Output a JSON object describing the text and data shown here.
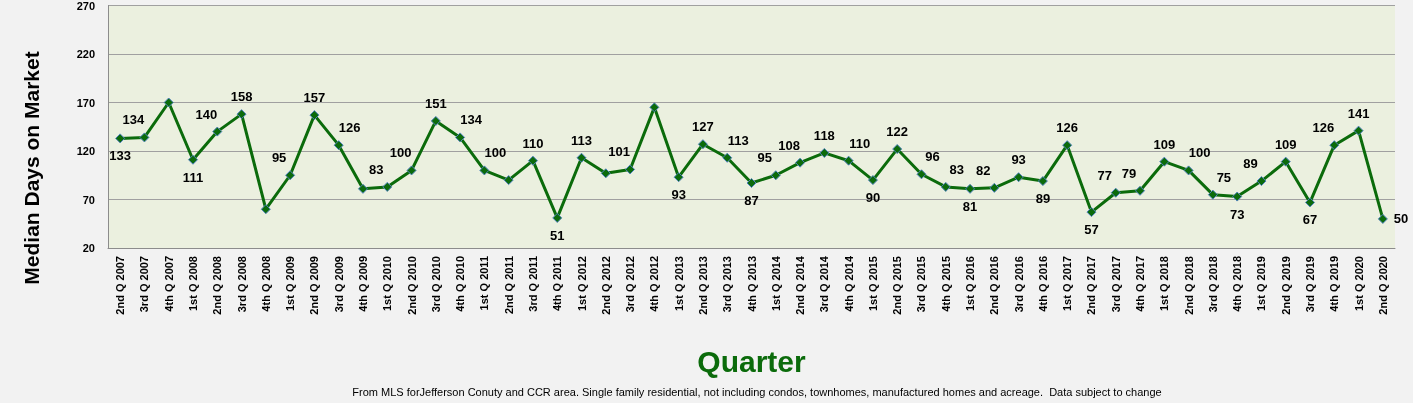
{
  "chart_data": {
    "type": "line",
    "categories": [
      "2nd Q 2007",
      "3rd Q 2007",
      "4th Q 2007",
      "1st Q 2008",
      "2nd Q 2008",
      "3rd Q 2008",
      "4th Q 2008",
      "1st Q 2009",
      "2nd Q 2009",
      "3rd Q 2009",
      "4th Q 2009",
      "1st Q 2010",
      "2nd Q 2010",
      "3rd Q 2010",
      "4th Q 2010",
      "1st Q 2011",
      "2nd Q 2011",
      "3rd Q 2011",
      "4th Q 2011",
      "1st Q 2012",
      "2nd Q 2012",
      "3rd Q 2012",
      "4th Q 2012",
      "1st Q 2013",
      "2nd Q 2013",
      "3rd Q 2013",
      "4th Q 2013",
      "1st Q 2014",
      "2nd Q 2014",
      "3rd Q 2014",
      "4th Q 2014",
      "1st Q 2015",
      "2nd Q 2015",
      "3rd Q 2015",
      "4th Q 2015",
      "1st Q 2016",
      "2nd Q 2016",
      "3rd Q 2016",
      "4th Q 2016",
      "1st Q 2017",
      "2nd Q 2017",
      "3rd Q 2017",
      "4th Q 2017",
      "1st Q 2018",
      "2nd Q 2018",
      "3rd Q 2018",
      "4th Q 2018",
      "1st Q 2019",
      "2nd Q 2019",
      "3rd Q 2019",
      "4th Q 2019",
      "1st Q 2020",
      "2nd Q 2020"
    ],
    "values": [
      133,
      134,
      170,
      111,
      140,
      158,
      60,
      95,
      157,
      126,
      81,
      83,
      100,
      151,
      134,
      100,
      90,
      110,
      51,
      113,
      97,
      101,
      165,
      93,
      127,
      113,
      87,
      95,
      108,
      118,
      110,
      90,
      122,
      96,
      83,
      81,
      82,
      93,
      89,
      126,
      57,
      77,
      79,
      109,
      100,
      75,
      73,
      89,
      109,
      67,
      126,
      141,
      50
    ],
    "value_labels": [
      "133",
      "134",
      null,
      "111",
      "140",
      "158",
      null,
      "95",
      "157",
      "126",
      null,
      "83",
      "100",
      "151",
      "134",
      "100",
      null,
      "110",
      "51",
      "113",
      null,
      "101",
      null,
      "93",
      "127",
      "113",
      "87",
      "95",
      "108",
      "118",
      "110",
      "90",
      "122",
      "96",
      "83",
      "81",
      "82",
      "93",
      "89",
      "126",
      "57",
      "77",
      "79",
      "109",
      "100",
      "75",
      "73",
      "89",
      "109",
      "67",
      "126",
      "141",
      "50"
    ],
    "color": "#0b6b0b",
    "marker": "diamond",
    "line_style": "solid",
    "xlabel": "Quarter",
    "ylabel": "Median Days on Market",
    "ylim": [
      20,
      270
    ],
    "yticks": [
      20,
      70,
      120,
      170,
      220,
      270
    ],
    "grid": "y",
    "annotations": [
      "From MLS forJefferson Conuty and CCR area. Single family residential, not including condos, townhomes, manufactured homes and acreage.  Data subject to change"
    ]
  }
}
